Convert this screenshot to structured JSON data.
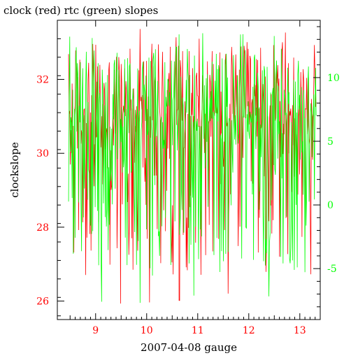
{
  "chart_data": {
    "type": "line",
    "title": "clock (red) rtc (green) slopes",
    "xlabel": "2007-04-08 gauge",
    "ylabel": "clockslope",
    "xlim": [
      8.25,
      13.4
    ],
    "ylim_left": [
      25.5,
      33.6
    ],
    "ylim_right": [
      -9.0,
      14.5
    ],
    "x_ticks": [
      9,
      10,
      11,
      12,
      13
    ],
    "y_left_ticks": [
      26,
      28,
      30,
      32
    ],
    "y_right_ticks": [
      -5,
      0,
      5,
      10
    ],
    "grid": false,
    "colors": {
      "left_axis": "#ff0000",
      "right_axis": "#00ff00",
      "clock": "#ff0000",
      "rtc": "#00ff00",
      "x_axis": "#ff0000"
    },
    "series": [
      {
        "axis": "left",
        "color": "#ff0000",
        "x_range": [
          8.47,
          13.32
        ],
        "n_points": 420,
        "mean": 31.0,
        "min": 25.9,
        "max": 33.4
      },
      {
        "axis": "right",
        "color": "#00ff00",
        "x_range": [
          8.47,
          13.32
        ],
        "n_points": 420,
        "mean": 6.5,
        "min": -7.7,
        "max": 13.5
      }
    ]
  }
}
